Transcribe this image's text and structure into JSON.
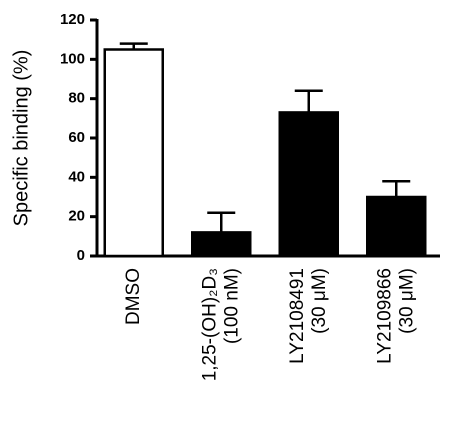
{
  "chart_data": {
    "type": "bar",
    "y_label": "Specific binding (%)",
    "categories": [
      [
        "DMSO"
      ],
      [
        "1,25-(OH)₂D₃",
        "(100 nM)"
      ],
      [
        "LY2108491",
        "(30 μM)"
      ],
      [
        "LY2109866",
        "(30 μM)"
      ]
    ],
    "values": [
      105,
      12,
      73,
      30
    ],
    "errors": [
      3,
      10,
      11,
      8
    ],
    "colors": [
      "#ffffff",
      "#000000",
      "#000000",
      "#000000"
    ],
    "ylim": [
      0,
      120
    ],
    "yticks": [
      0,
      20,
      40,
      60,
      80,
      100,
      120
    ]
  }
}
